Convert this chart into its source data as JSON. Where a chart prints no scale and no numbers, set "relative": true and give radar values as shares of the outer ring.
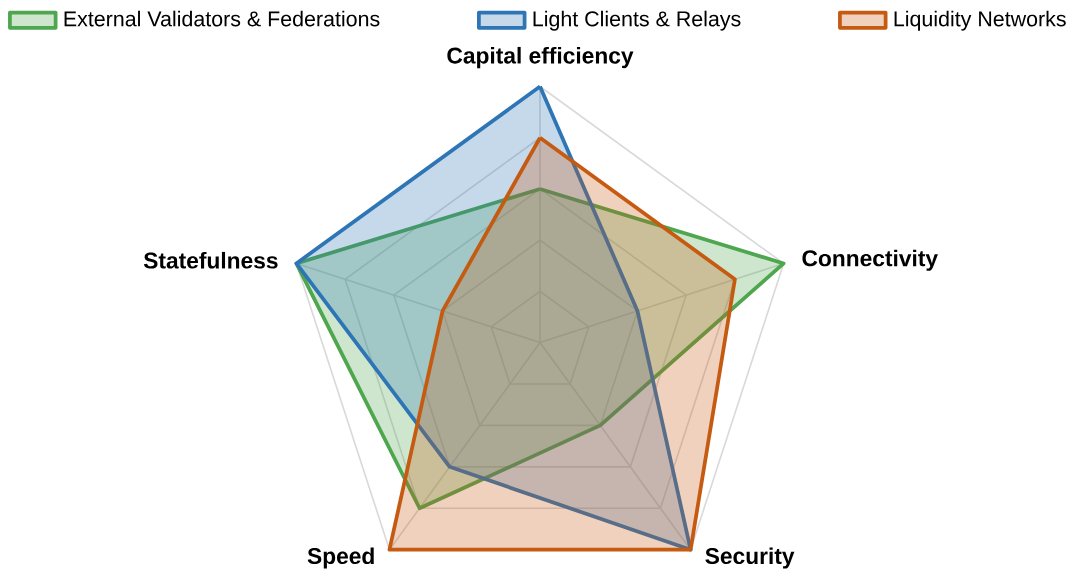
{
  "chart_data": {
    "type": "radar",
    "relative": true,
    "grid": true,
    "legend": "top",
    "categories": [
      "Capital efficiency",
      "Connectivity",
      "Security",
      "Speed",
      "Statefulness"
    ],
    "series": [
      {
        "name": "External Validators & Federations",
        "color": "#4ea64e",
        "values": [
          0.6,
          1,
          0.4,
          0.8,
          1
        ]
      },
      {
        "name": "Light Clients & Relays",
        "color": "#2e75b6",
        "values": [
          1,
          0.4,
          1,
          0.6,
          1
        ]
      },
      {
        "name": "Liquidity Networks",
        "color": "#c55a11",
        "values": [
          0.8,
          0.8,
          1,
          1,
          0.4
        ]
      }
    ]
  }
}
